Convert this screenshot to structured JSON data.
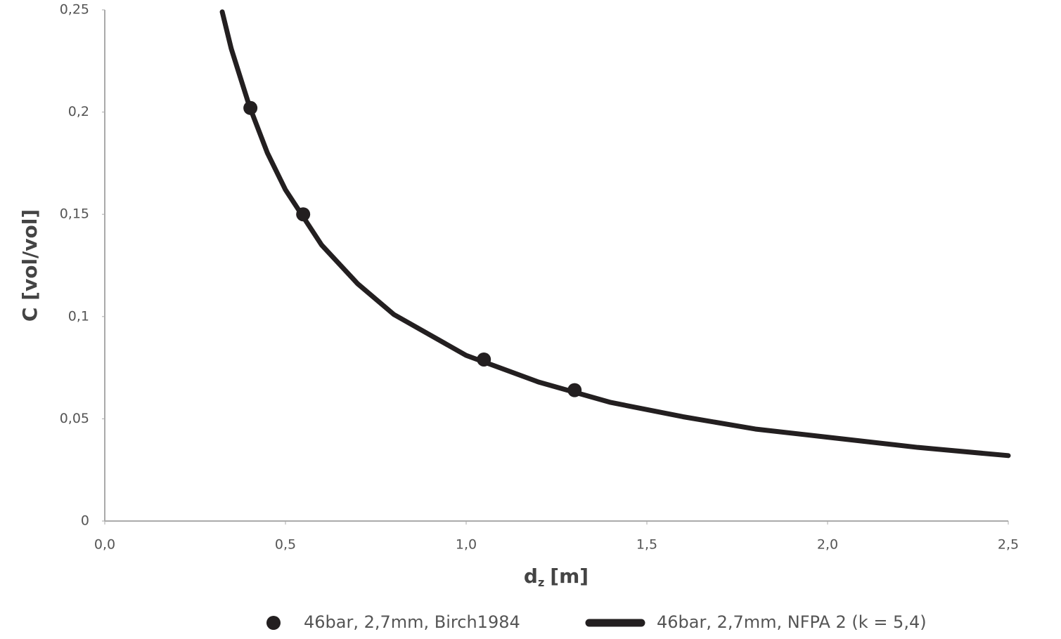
{
  "chart_data": {
    "type": "scatter",
    "xlabel": "d",
    "xlabel_subscript": "z",
    "xlabel_unit": "[m]",
    "ylabel": "C [vol/vol]",
    "xlim": [
      0,
      2.5
    ],
    "xticks": [
      {
        "value": 0,
        "label": "0,0"
      },
      {
        "value": 0.5,
        "label": "0,5"
      },
      {
        "value": 1,
        "label": "1,0"
      },
      {
        "value": 1.5,
        "label": "1,5"
      },
      {
        "value": 2,
        "label": "2,0"
      },
      {
        "value": 2.5,
        "label": "2,5"
      }
    ],
    "ylim": [
      0,
      0.25
    ],
    "yticks": [
      0,
      {
        "value": 0.05,
        "label": "0,05"
      },
      {
        "value": 0.1,
        "label": "0,1"
      },
      {
        "value": 0.15,
        "label": "0,15"
      },
      {
        "value": 0.2,
        "label": "0,2"
      },
      {
        "value": 0.25,
        "label": "0,25"
      }
    ],
    "grid": false,
    "legend": "bottom",
    "series": [
      {
        "name": "46bar, 2,7mm, Birch1984",
        "type": "scatter",
        "color": "#231f20",
        "x": [
          0.403,
          0.549,
          1.049,
          1.3
        ],
        "values": [
          0.202,
          0.15,
          0.079,
          0.064
        ]
      },
      {
        "name": "46bar, 2,7mm, NFPA 2 (k = 5,4)",
        "type": "line",
        "color": "#231f20",
        "x": [
          0.325,
          0.35,
          0.4,
          0.45,
          0.5,
          0.6,
          0.7,
          0.8,
          1.0,
          1.2,
          1.4,
          1.6,
          1.8,
          2.0,
          2.25,
          2.5
        ],
        "values": [
          0.249,
          0.231,
          0.203,
          0.18,
          0.162,
          0.135,
          0.116,
          0.101,
          0.081,
          0.068,
          0.058,
          0.051,
          0.045,
          0.041,
          0.036,
          0.032
        ]
      }
    ]
  }
}
